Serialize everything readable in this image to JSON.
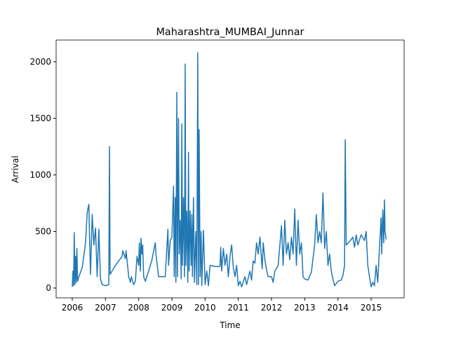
{
  "chart_data": {
    "type": "line",
    "title": "Maharashtra_MUMBAI_Junnar",
    "xlabel": "Time",
    "ylabel": "Arrival",
    "x": [
      2006.0,
      2006.02,
      2006.04,
      2006.06,
      2006.08,
      2006.1,
      2006.12,
      2006.14,
      2006.16,
      2006.2,
      2006.3,
      2006.4,
      2006.45,
      2006.5,
      2006.52,
      2006.55,
      2006.6,
      2006.65,
      2006.7,
      2006.75,
      2006.8,
      2006.85,
      2006.9,
      2007.0,
      2007.1,
      2007.12,
      2007.14,
      2007.3,
      2007.5,
      2007.52,
      2007.6,
      2007.62,
      2007.7,
      2007.75,
      2007.78,
      2007.85,
      2007.9,
      2007.95,
      2008.0,
      2008.02,
      2008.05,
      2008.07,
      2008.1,
      2008.12,
      2008.15,
      2008.2,
      2008.3,
      2008.4,
      2008.5,
      2008.52,
      2008.6,
      2008.8,
      2008.88,
      2008.9,
      2008.95,
      2009.0,
      2009.05,
      2009.07,
      2009.1,
      2009.12,
      2009.15,
      2009.17,
      2009.2,
      2009.22,
      2009.25,
      2009.28,
      2009.3,
      2009.32,
      2009.35,
      2009.38,
      2009.4,
      2009.42,
      2009.45,
      2009.48,
      2009.5,
      2009.52,
      2009.55,
      2009.58,
      2009.6,
      2009.62,
      2009.65,
      2009.68,
      2009.72,
      2009.75,
      2009.78,
      2009.8,
      2009.82,
      2009.85,
      2009.88,
      2009.9,
      2009.95,
      2010.0,
      2010.05,
      2010.1,
      2010.15,
      2010.3,
      2010.45,
      2010.47,
      2010.5,
      2010.55,
      2010.6,
      2010.65,
      2010.7,
      2010.75,
      2010.8,
      2010.85,
      2010.9,
      2010.95,
      2011.0,
      2011.05,
      2011.1,
      2011.2,
      2011.25,
      2011.35,
      2011.4,
      2011.45,
      2011.5,
      2011.55,
      2011.6,
      2011.65,
      2011.72,
      2011.75,
      2011.8,
      2011.85,
      2011.9,
      2012.0,
      2012.05,
      2012.1,
      2012.2,
      2012.3,
      2012.35,
      2012.4,
      2012.45,
      2012.5,
      2012.55,
      2012.6,
      2012.65,
      2012.7,
      2012.75,
      2012.8,
      2012.85,
      2012.9,
      2012.95,
      2013.0,
      2013.1,
      2013.2,
      2013.3,
      2013.35,
      2013.4,
      2013.45,
      2013.5,
      2013.55,
      2013.6,
      2013.65,
      2013.7,
      2013.75,
      2013.8,
      2013.85,
      2013.9,
      2014.0,
      2014.1,
      2014.15,
      2014.2,
      2014.22,
      2014.25,
      2014.35,
      2014.45,
      2014.5,
      2014.55,
      2014.6,
      2014.7,
      2014.8,
      2014.85,
      2014.9,
      2014.95,
      2015.0,
      2015.05,
      2015.1,
      2015.15,
      2015.2,
      2015.25,
      2015.3,
      2015.32,
      2015.35,
      2015.38,
      2015.4,
      2015.42,
      2015.45
    ],
    "series": [
      {
        "color": "#1f77b4",
        "values": [
          10,
          150,
          20,
          490,
          30,
          280,
          50,
          350,
          60,
          100,
          180,
          400,
          670,
          740,
          450,
          120,
          650,
          380,
          530,
          100,
          520,
          80,
          30,
          20,
          30,
          1250,
          120,
          200,
          280,
          330,
          260,
          330,
          100,
          50,
          100,
          30,
          60,
          280,
          200,
          400,
          150,
          440,
          300,
          380,
          100,
          60,
          150,
          250,
          400,
          300,
          100,
          100,
          520,
          200,
          420,
          450,
          900,
          100,
          800,
          50,
          1730,
          100,
          1500,
          300,
          600,
          80,
          1450,
          200,
          800,
          100,
          1980,
          200,
          680,
          50,
          1200,
          150,
          680,
          200,
          650,
          100,
          800,
          50,
          500,
          30,
          2080,
          30,
          1400,
          100,
          500,
          20,
          510,
          30,
          150,
          20,
          200,
          190,
          190,
          360,
          150,
          350,
          200,
          300,
          100,
          280,
          380,
          180,
          100,
          200,
          20,
          60,
          10,
          100,
          30,
          150,
          70,
          240,
          220,
          400,
          300,
          450,
          170,
          400,
          250,
          160,
          100,
          100,
          50,
          150,
          200,
          550,
          200,
          600,
          300,
          400,
          250,
          450,
          300,
          700,
          200,
          600,
          300,
          400,
          100,
          80,
          70,
          140,
          380,
          650,
          400,
          500,
          400,
          840,
          350,
          500,
          200,
          300,
          150,
          80,
          20,
          60,
          70,
          110,
          200,
          1310,
          380,
          410,
          450,
          360,
          470,
          380,
          470,
          420,
          500,
          200,
          100,
          10,
          50,
          20,
          200,
          50,
          350,
          620,
          300,
          690,
          400,
          780,
          500,
          430
        ]
      }
    ],
    "xlim": [
      2005.514,
      2015.993
    ],
    "xticks": [
      2006,
      2007,
      2008,
      2009,
      2010,
      2011,
      2012,
      2013,
      2014,
      2015
    ],
    "ylim": [
      -87,
      2192
    ],
    "yticks": [
      0,
      500,
      1000,
      1500,
      2000
    ]
  }
}
